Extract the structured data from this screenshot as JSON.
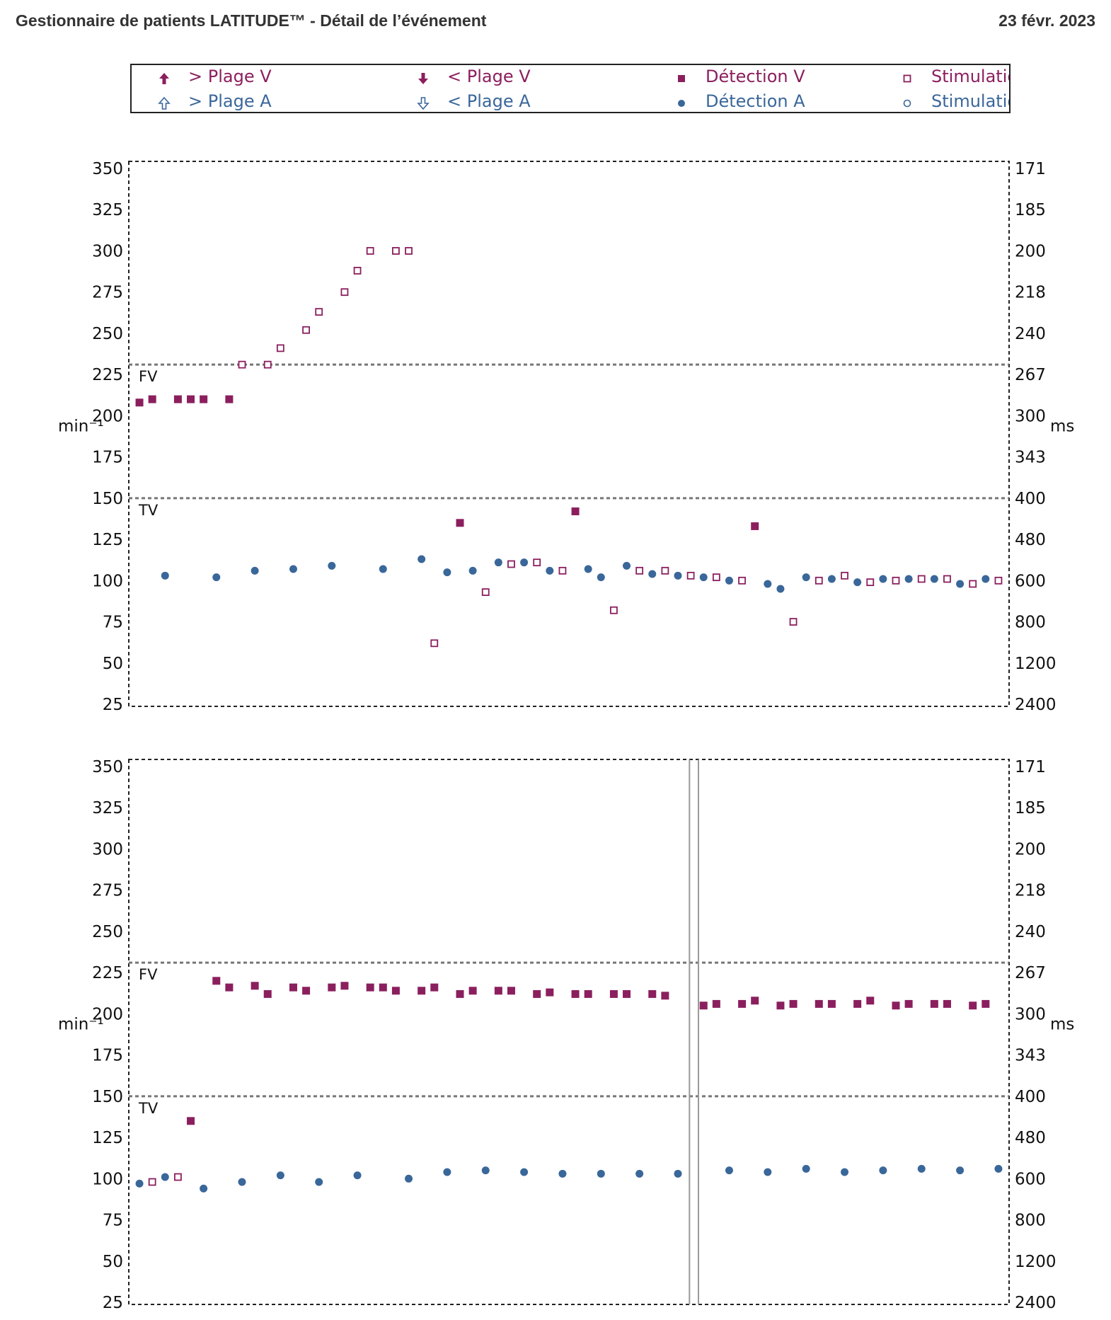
{
  "header": {
    "title": "Gestionnaire de patients LATITUDE™ - Détail de l’événement",
    "date": "23 févr. 2023"
  },
  "colors": {
    "ventricular": "#8b1f5e",
    "atrial": "#3a679a",
    "threshold": "#777777",
    "marker": "#999999"
  },
  "legend": [
    {
      "label": "> Plage V",
      "symbol": "arrow-up-filled-icon",
      "color": "#8b1f5e"
    },
    {
      "label": "< Plage V",
      "symbol": "arrow-down-filled-icon",
      "color": "#8b1f5e"
    },
    {
      "label": "Détection V",
      "symbol": "square-filled-icon",
      "color": "#8b1f5e"
    },
    {
      "label": "Stimulatio",
      "symbol": "square-open-icon",
      "color": "#8b1f5e"
    },
    {
      "label": "> Plage A",
      "symbol": "arrow-up-open-icon",
      "color": "#3a679a"
    },
    {
      "label": "< Plage A",
      "symbol": "arrow-down-open-icon",
      "color": "#3a679a"
    },
    {
      "label": "Détection A",
      "symbol": "circle-filled-icon",
      "color": "#3a679a"
    },
    {
      "label": "Stimulatio",
      "symbol": "circle-open-icon",
      "color": "#3a679a"
    }
  ],
  "chart_data": [
    {
      "type": "scatter",
      "ylabel_left": "min⁻¹",
      "ylabel_right": "ms",
      "ylim": [
        25,
        350
      ],
      "y_ticks_left": [
        "350",
        "325",
        "300",
        "275",
        "250",
        "225",
        "200",
        "175",
        "150",
        "125",
        "100",
        "75",
        "50",
        "25"
      ],
      "y_ticks_right": [
        "171",
        "185",
        "200",
        "218",
        "240",
        "267",
        "300",
        "343",
        "400",
        "480",
        "600",
        "800",
        "1200",
        "2400"
      ],
      "thresholds": [
        {
          "name": "FV",
          "value": 231
        },
        {
          "name": "TV",
          "value": 150
        }
      ],
      "xlim": [
        0,
        68
      ],
      "markers_x": [],
      "series": [
        {
          "name": "Détection V",
          "points": [
            [
              0.5,
              208
            ],
            [
              1.5,
              210
            ],
            [
              3.5,
              210
            ],
            [
              4.5,
              210
            ],
            [
              5.5,
              210
            ],
            [
              7.5,
              210
            ],
            [
              25.5,
              135
            ],
            [
              34.5,
              142
            ],
            [
              48.5,
              133
            ]
          ]
        },
        {
          "name": "Stimulatio V",
          "points": [
            [
              8.5,
              231
            ],
            [
              10.5,
              231
            ],
            [
              11.5,
              241
            ],
            [
              13.5,
              252
            ],
            [
              14.5,
              263
            ],
            [
              16.5,
              275
            ],
            [
              17.5,
              288
            ],
            [
              18.5,
              300
            ],
            [
              20.5,
              300
            ],
            [
              21.5,
              300
            ],
            [
              23.5,
              62
            ],
            [
              27.5,
              93
            ],
            [
              29.5,
              110
            ],
            [
              31.5,
              111
            ],
            [
              33.5,
              106
            ],
            [
              37.5,
              82
            ],
            [
              39.5,
              106
            ],
            [
              41.5,
              106
            ],
            [
              43.5,
              103
            ],
            [
              45.5,
              102
            ],
            [
              47.5,
              100
            ],
            [
              51.5,
              75
            ],
            [
              53.5,
              100
            ],
            [
              55.5,
              103
            ],
            [
              57.5,
              99
            ],
            [
              59.5,
              100
            ],
            [
              61.5,
              101
            ],
            [
              63.5,
              101
            ],
            [
              65.5,
              98
            ],
            [
              67.5,
              100
            ]
          ]
        },
        {
          "name": "Détection A",
          "points": [
            [
              2.5,
              103
            ],
            [
              6.5,
              102
            ],
            [
              9.5,
              106
            ],
            [
              12.5,
              107
            ],
            [
              15.5,
              109
            ],
            [
              19.5,
              107
            ],
            [
              22.5,
              113
            ],
            [
              24.5,
              105
            ],
            [
              26.5,
              106
            ],
            [
              28.5,
              111
            ],
            [
              30.5,
              111
            ],
            [
              32.5,
              106
            ],
            [
              35.5,
              107
            ],
            [
              36.5,
              102
            ],
            [
              38.5,
              109
            ],
            [
              40.5,
              104
            ],
            [
              42.5,
              103
            ],
            [
              44.5,
              102
            ],
            [
              46.5,
              100
            ],
            [
              49.5,
              98
            ],
            [
              50.5,
              95
            ],
            [
              52.5,
              102
            ],
            [
              54.5,
              101
            ],
            [
              56.5,
              99
            ],
            [
              58.5,
              101
            ],
            [
              60.5,
              101
            ],
            [
              62.5,
              101
            ],
            [
              64.5,
              98
            ],
            [
              66.5,
              101
            ]
          ]
        }
      ]
    },
    {
      "type": "scatter",
      "ylabel_left": "min⁻¹",
      "ylabel_right": "ms",
      "ylim": [
        25,
        350
      ],
      "y_ticks_left": [
        "350",
        "325",
        "300",
        "275",
        "250",
        "225",
        "200",
        "175",
        "150",
        "125",
        "100",
        "75",
        "50",
        "25"
      ],
      "y_ticks_right": [
        "171",
        "185",
        "200",
        "218",
        "240",
        "267",
        "300",
        "343",
        "400",
        "480",
        "600",
        "800",
        "1200",
        "2400"
      ],
      "thresholds": [
        {
          "name": "FV",
          "value": 231
        },
        {
          "name": "TV",
          "value": 150
        }
      ],
      "xlim": [
        0,
        68
      ],
      "markers_x": [
        43.4,
        44.1
      ],
      "series": [
        {
          "name": "Détection V",
          "points": [
            [
              4.5,
              135
            ],
            [
              6.5,
              220
            ],
            [
              7.5,
              216
            ],
            [
              9.5,
              217
            ],
            [
              10.5,
              212
            ],
            [
              12.5,
              216
            ],
            [
              13.5,
              214
            ],
            [
              15.5,
              216
            ],
            [
              16.5,
              217
            ],
            [
              18.5,
              216
            ],
            [
              19.5,
              216
            ],
            [
              20.5,
              214
            ],
            [
              22.5,
              214
            ],
            [
              23.5,
              216
            ],
            [
              25.5,
              212
            ],
            [
              26.5,
              214
            ],
            [
              28.5,
              214
            ],
            [
              29.5,
              214
            ],
            [
              31.5,
              212
            ],
            [
              32.5,
              213
            ],
            [
              34.5,
              212
            ],
            [
              35.5,
              212
            ],
            [
              37.5,
              212
            ],
            [
              38.5,
              212
            ],
            [
              40.5,
              212
            ],
            [
              41.5,
              211
            ],
            [
              44.5,
              205
            ],
            [
              45.5,
              206
            ],
            [
              47.5,
              206
            ],
            [
              48.5,
              208
            ],
            [
              50.5,
              205
            ],
            [
              51.5,
              206
            ],
            [
              53.5,
              206
            ],
            [
              54.5,
              206
            ],
            [
              56.5,
              206
            ],
            [
              57.5,
              208
            ],
            [
              59.5,
              205
            ],
            [
              60.5,
              206
            ],
            [
              62.5,
              206
            ],
            [
              63.5,
              206
            ],
            [
              65.5,
              205
            ],
            [
              66.5,
              206
            ]
          ]
        },
        {
          "name": "Stimulatio V",
          "points": [
            [
              1.5,
              98
            ],
            [
              3.5,
              101
            ]
          ]
        },
        {
          "name": "Détection A",
          "points": [
            [
              0.5,
              97
            ],
            [
              2.5,
              101
            ],
            [
              5.5,
              94
            ],
            [
              8.5,
              98
            ],
            [
              11.5,
              102
            ],
            [
              14.5,
              98
            ],
            [
              17.5,
              102
            ],
            [
              21.5,
              100
            ],
            [
              24.5,
              104
            ],
            [
              27.5,
              105
            ],
            [
              30.5,
              104
            ],
            [
              33.5,
              103
            ],
            [
              36.5,
              103
            ],
            [
              39.5,
              103
            ],
            [
              42.5,
              103
            ],
            [
              46.5,
              105
            ],
            [
              49.5,
              104
            ],
            [
              52.5,
              106
            ],
            [
              55.5,
              104
            ],
            [
              58.5,
              105
            ],
            [
              61.5,
              106
            ],
            [
              64.5,
              105
            ],
            [
              67.5,
              106
            ]
          ]
        }
      ]
    }
  ]
}
